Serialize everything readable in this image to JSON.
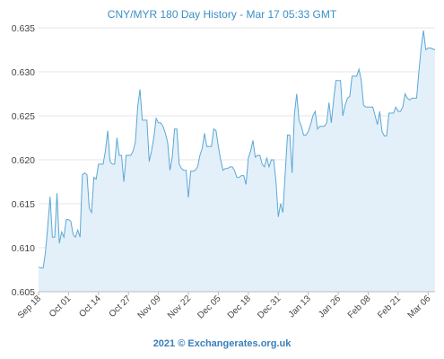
{
  "chart_data": {
    "type": "area",
    "title": "CNY/MYR 180 Day History - Mar 17 05:33 GMT",
    "xlabel": "",
    "ylabel": "",
    "ylim": [
      0.605,
      0.635
    ],
    "yticks": [
      "0.605",
      "0.610",
      "0.615",
      "0.620",
      "0.625",
      "0.630",
      "0.635"
    ],
    "xticks": [
      "Sep 18",
      "Oct 01",
      "Oct 14",
      "Oct 27",
      "Nov 09",
      "Nov 22",
      "Dec 05",
      "Dec 18",
      "Dec 31",
      "Jan 13",
      "Jan 26",
      "Feb 08",
      "Feb 21",
      "Mar 06"
    ],
    "grid": true,
    "legend": "none",
    "colors": {
      "line": "#5aa8d6",
      "fill": "#e4f0f9",
      "grid": "#e6e6e6",
      "title": "#3a8fc6",
      "footer": "#3a7fb8"
    },
    "series": [
      {
        "values": [
          0.6078,
          0.6077,
          0.6077,
          0.6095,
          0.6125,
          0.6158,
          0.6112,
          0.6112,
          0.6162,
          0.6105,
          0.6118,
          0.6112,
          0.6132,
          0.6132,
          0.613,
          0.6115,
          0.6112,
          0.612,
          0.6112,
          0.6183,
          0.6185,
          0.6183,
          0.6145,
          0.614,
          0.618,
          0.6178,
          0.6195,
          0.6195,
          0.6195,
          0.621,
          0.6233,
          0.6198,
          0.6195,
          0.6195,
          0.6225,
          0.6205,
          0.6205,
          0.6175,
          0.6205,
          0.6205,
          0.6205,
          0.621,
          0.622,
          0.626,
          0.628,
          0.6245,
          0.6245,
          0.6245,
          0.6198,
          0.621,
          0.6225,
          0.6247,
          0.6242,
          0.6242,
          0.6238,
          0.623,
          0.622,
          0.6188,
          0.6203,
          0.6235,
          0.6235,
          0.6195,
          0.619,
          0.6188,
          0.6188,
          0.6157,
          0.6187,
          0.6187,
          0.6188,
          0.6192,
          0.6205,
          0.6213,
          0.623,
          0.6215,
          0.6215,
          0.6215,
          0.6235,
          0.6233,
          0.6215,
          0.62,
          0.6188,
          0.619,
          0.619,
          0.6192,
          0.6192,
          0.6188,
          0.618,
          0.618,
          0.6182,
          0.6182,
          0.6172,
          0.6202,
          0.621,
          0.6222,
          0.6203,
          0.6205,
          0.6205,
          0.6195,
          0.6192,
          0.6202,
          0.6192,
          0.62,
          0.62,
          0.6175,
          0.6135,
          0.615,
          0.614,
          0.6185,
          0.6228,
          0.6228,
          0.6185,
          0.6252,
          0.6275,
          0.6245,
          0.6238,
          0.6228,
          0.6228,
          0.6232,
          0.624,
          0.625,
          0.6255,
          0.6235,
          0.6238,
          0.6238,
          0.6238,
          0.6242,
          0.6265,
          0.6242,
          0.6268,
          0.629,
          0.629,
          0.629,
          0.625,
          0.6262,
          0.627,
          0.6272,
          0.6295,
          0.6295,
          0.6295,
          0.6303,
          0.629,
          0.6262,
          0.626,
          0.626,
          0.626,
          0.626,
          0.625,
          0.624,
          0.6255,
          0.6232,
          0.6227,
          0.6227,
          0.6253,
          0.6253,
          0.6253,
          0.626,
          0.6255,
          0.6255,
          0.626,
          0.6275,
          0.627,
          0.6268,
          0.627,
          0.627,
          0.627,
          0.63,
          0.6328,
          0.6347,
          0.6325,
          0.6327,
          0.6327,
          0.6326,
          0.6325
        ]
      }
    ]
  },
  "footer": "2021 © Exchangerates.org.uk"
}
